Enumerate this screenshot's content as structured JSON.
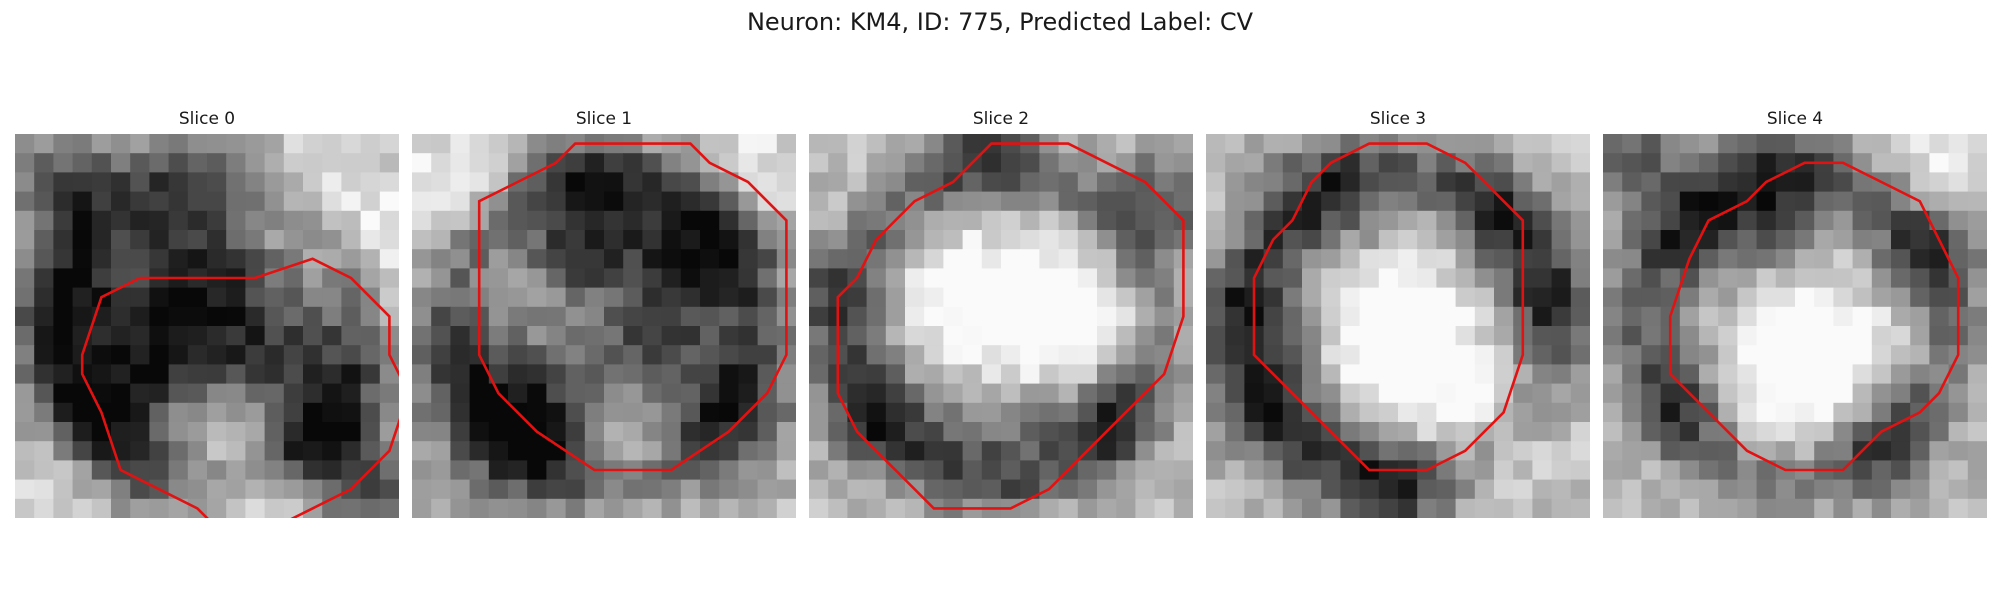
{
  "figure": {
    "title": "Neuron: KM4, ID: 775, Predicted Label: CV"
  },
  "panels": [
    {
      "title": "Slice 0",
      "outline": [
        [
          12,
          7
        ],
        [
          15,
          6
        ],
        [
          17,
          7
        ],
        [
          19,
          9
        ],
        [
          19,
          11
        ],
        [
          20,
          13
        ],
        [
          19,
          16
        ],
        [
          17,
          18
        ],
        [
          15,
          19
        ],
        [
          13,
          20
        ],
        [
          10,
          20
        ],
        [
          9,
          19
        ],
        [
          7,
          18
        ],
        [
          5,
          17
        ],
        [
          4,
          14
        ],
        [
          3,
          12
        ],
        [
          3,
          11
        ],
        [
          4,
          8
        ],
        [
          6,
          7
        ]
      ],
      "dark_spots": [
        [
          2,
          2,
          2
        ],
        [
          8,
          5,
          2.5
        ],
        [
          11,
          8,
          3
        ],
        [
          14,
          12,
          3
        ],
        [
          8,
          11,
          2
        ],
        [
          16,
          16,
          2
        ],
        [
          3,
          8,
          2.5
        ],
        [
          4,
          12,
          2.5
        ],
        [
          5,
          16,
          2.5
        ],
        [
          18,
          19,
          2
        ]
      ],
      "light_spots": [
        [
          15,
          3,
          2.5
        ],
        [
          19,
          6,
          2.5
        ],
        [
          10,
          16,
          2.5
        ],
        [
          14,
          19,
          2
        ],
        [
          2,
          18,
          2
        ]
      ]
    },
    {
      "title": "Slice 1",
      "outline": [
        [
          8,
          0
        ],
        [
          14,
          0
        ],
        [
          15,
          1
        ],
        [
          17,
          2
        ],
        [
          19,
          4
        ],
        [
          19,
          11
        ],
        [
          18,
          13
        ],
        [
          16,
          15
        ],
        [
          13,
          17
        ],
        [
          9,
          17
        ],
        [
          6,
          15
        ],
        [
          4,
          13
        ],
        [
          3,
          11
        ],
        [
          3,
          3
        ],
        [
          5,
          2
        ],
        [
          7,
          1
        ]
      ],
      "dark_spots": [
        [
          4,
          13,
          3
        ],
        [
          6,
          15,
          2.5
        ],
        [
          13,
          7,
          3
        ],
        [
          11,
          11,
          2.5
        ],
        [
          15,
          5,
          2
        ],
        [
          8,
          6,
          2
        ],
        [
          16,
          14,
          2.5
        ],
        [
          9,
          3,
          2
        ]
      ],
      "light_spots": [
        [
          9,
          9,
          2
        ],
        [
          11,
          15,
          2
        ],
        [
          2,
          2,
          2
        ],
        [
          17,
          2,
          2
        ]
      ]
    },
    {
      "title": "Slice 2",
      "outline": [
        [
          9,
          0
        ],
        [
          13,
          0
        ],
        [
          15,
          1
        ],
        [
          17,
          2
        ],
        [
          19,
          4
        ],
        [
          19,
          9
        ],
        [
          18,
          12
        ],
        [
          15,
          15
        ],
        [
          12,
          18
        ],
        [
          10,
          19
        ],
        [
          6,
          19
        ],
        [
          4,
          17
        ],
        [
          2,
          15
        ],
        [
          1,
          13
        ],
        [
          1,
          8
        ],
        [
          2,
          7
        ],
        [
          3,
          5
        ],
        [
          5,
          3
        ],
        [
          7,
          2
        ]
      ],
      "dark_spots": [
        [
          9,
          14,
          3
        ],
        [
          18,
          3,
          2
        ],
        [
          3,
          14,
          2
        ],
        [
          15,
          14,
          2
        ],
        [
          1,
          8,
          2
        ],
        [
          9,
          0,
          2
        ]
      ],
      "light_spots": [
        [
          7,
          9,
          3
        ],
        [
          12,
          8,
          3
        ],
        [
          10,
          11,
          2.5
        ],
        [
          14,
          10,
          2
        ]
      ]
    },
    {
      "title": "Slice 3",
      "outline": [
        [
          8,
          0
        ],
        [
          11,
          0
        ],
        [
          13,
          1
        ],
        [
          15,
          3
        ],
        [
          16,
          4
        ],
        [
          16,
          11
        ],
        [
          15,
          14
        ],
        [
          13,
          16
        ],
        [
          11,
          17
        ],
        [
          8,
          17
        ],
        [
          6,
          15
        ],
        [
          2,
          11
        ],
        [
          2,
          7
        ],
        [
          3,
          5
        ],
        [
          4,
          4
        ],
        [
          5,
          2
        ],
        [
          6,
          1
        ]
      ],
      "dark_spots": [
        [
          6,
          3,
          2.5
        ],
        [
          2,
          9,
          2.5
        ],
        [
          4,
          14,
          2.5
        ],
        [
          14,
          4,
          2
        ],
        [
          9,
          18,
          2
        ],
        [
          17,
          8,
          2
        ]
      ],
      "light_spots": [
        [
          10,
          8,
          3
        ],
        [
          11,
          12,
          2.5
        ],
        [
          8,
          11,
          2.5
        ],
        [
          15,
          15,
          2
        ]
      ]
    },
    {
      "title": "Slice 4",
      "outline": [
        [
          10,
          1
        ],
        [
          12,
          1
        ],
        [
          14,
          2
        ],
        [
          16,
          3
        ],
        [
          17,
          5
        ],
        [
          18,
          7
        ],
        [
          18,
          11
        ],
        [
          17,
          13
        ],
        [
          16,
          14
        ],
        [
          14,
          15
        ],
        [
          13,
          16
        ],
        [
          12,
          17
        ],
        [
          9,
          17
        ],
        [
          7,
          16
        ],
        [
          5,
          14
        ],
        [
          3,
          12
        ],
        [
          3,
          9
        ],
        [
          4,
          6
        ],
        [
          5,
          4
        ],
        [
          7,
          3
        ],
        [
          8,
          2
        ]
      ],
      "dark_spots": [
        [
          9,
          3,
          2.5
        ],
        [
          5,
          5,
          2.5
        ],
        [
          1,
          0,
          2
        ],
        [
          16,
          6,
          2
        ],
        [
          4,
          13,
          2
        ],
        [
          14,
          15,
          2
        ]
      ],
      "light_spots": [
        [
          10,
          9,
          3
        ],
        [
          12,
          12,
          2.5
        ],
        [
          8,
          12,
          2.5
        ],
        [
          17,
          1,
          2
        ]
      ]
    }
  ]
}
